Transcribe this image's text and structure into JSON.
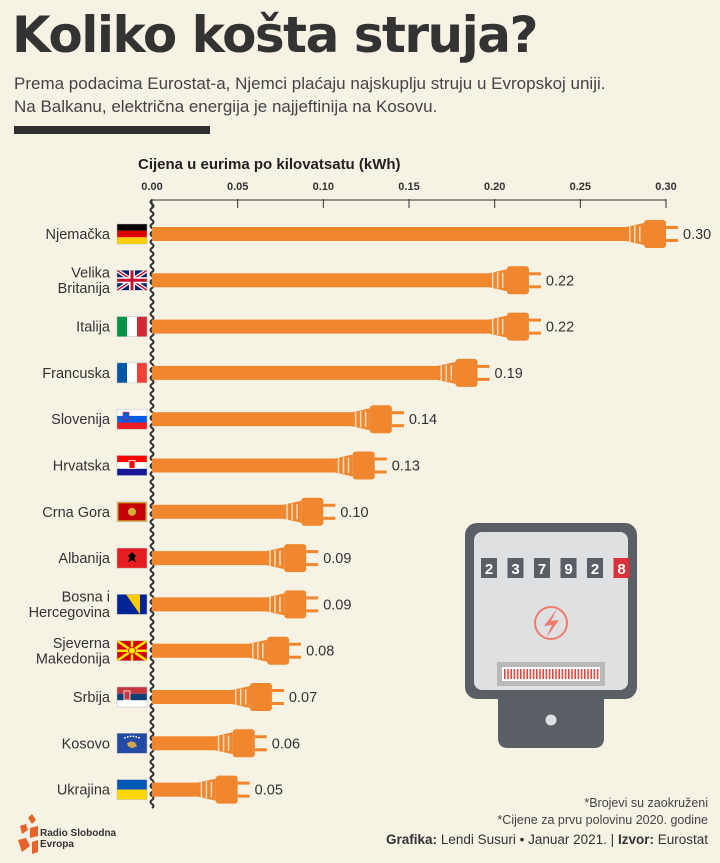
{
  "header": {
    "title": "Koliko košta struja?",
    "subtitle_line1": "Prema podacima Eurostat-a, Njemci plaćaju najskuplju struju u Evropskoj uniji.",
    "subtitle_line2": "Na Balkanu, električna energija je najjeftinija na Kosovu."
  },
  "chart_data": {
    "type": "bar",
    "title": "Cijena u eurima po kilovatsatu (kWh)",
    "x_ticks": [
      "0.00",
      "0.05",
      "0.10",
      "0.15",
      "0.20",
      "0.25",
      "0.30"
    ],
    "xlim": [
      0,
      0.3
    ],
    "categories": [
      "Njemačka",
      "Velika Britanija",
      "Italija",
      "Francuska",
      "Slovenija",
      "Hrvatska",
      "Crna Gora",
      "Albanija",
      "Bosna i Hercegovina",
      "Sjeverna Makedonija",
      "Srbija",
      "Kosovo",
      "Ukrajina"
    ],
    "category_lines": [
      [
        "Njemačka"
      ],
      [
        "Velika",
        "Britanija"
      ],
      [
        "Italija"
      ],
      [
        "Francuska"
      ],
      [
        "Slovenija"
      ],
      [
        "Hrvatska"
      ],
      [
        "Crna Gora"
      ],
      [
        "Albanija"
      ],
      [
        "Bosna i",
        "Hercegovina"
      ],
      [
        "Sjeverna",
        "Makedonija"
      ],
      [
        "Srbija"
      ],
      [
        "Kosovo"
      ],
      [
        "Ukrajina"
      ]
    ],
    "values": [
      0.3,
      0.22,
      0.22,
      0.19,
      0.14,
      0.13,
      0.1,
      0.09,
      0.09,
      0.08,
      0.07,
      0.06,
      0.05
    ],
    "value_labels": [
      "0.30",
      "0.22",
      "0.22",
      "0.19",
      "0.14",
      "0.13",
      "0.10",
      "0.09",
      "0.09",
      "0.08",
      "0.07",
      "0.06",
      "0.05"
    ],
    "bar_color": "#f0862e",
    "grid": false,
    "meter_digits": [
      "2",
      "3",
      "7",
      "9",
      "2",
      "8"
    ]
  },
  "footer": {
    "note1": "*Brojevi su zaokruženi",
    "note2": "*Cijene za prvu polovinu 2020. godine",
    "credit_label": "Grafika:",
    "credit_value": "Lendi Susuri • Januar 2021. |",
    "source_label": "Izvor:",
    "source_value": "Eurostat",
    "logo_line1": "Radio Slobodna",
    "logo_line2": "Evropa"
  },
  "colors": {
    "background": "#f6f2e4",
    "accent": "#f0862e",
    "meter": "#5a5f66",
    "meter_face": "#dfe0e2",
    "meter_red": "#d9303b"
  },
  "icons": {
    "flags": [
      "flag-germany",
      "flag-uk",
      "flag-italy",
      "flag-france",
      "flag-slovenia",
      "flag-croatia",
      "flag-montenegro",
      "flag-albania",
      "flag-bosnia",
      "flag-north-macedonia",
      "flag-serbia",
      "flag-kosovo",
      "flag-ukraine"
    ],
    "meter": "electricity-meter-icon",
    "logo": "rfe-logo-icon"
  }
}
